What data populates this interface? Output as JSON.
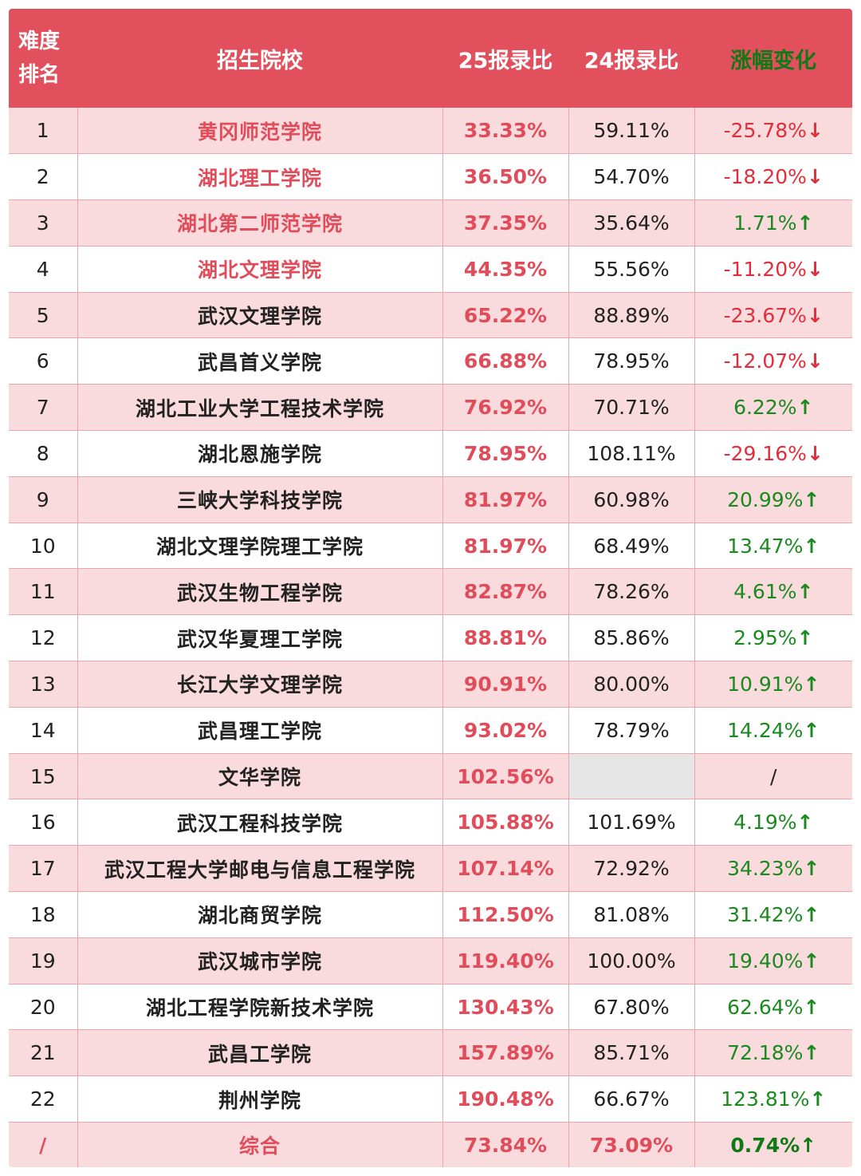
{
  "header": {
    "rank_line1": "难度",
    "rank_line2": "排名",
    "school": "招生院校",
    "ratio25": "25报录比",
    "ratio24": "24报录比",
    "change": "涨幅变化"
  },
  "rows": [
    {
      "rank": "1",
      "school": "黄冈师范学院",
      "r25": "33.33%",
      "r24": "59.11%",
      "change": "-25.78%",
      "dir": "down",
      "highlight": true
    },
    {
      "rank": "2",
      "school": "湖北理工学院",
      "r25": "36.50%",
      "r24": "54.70%",
      "change": "-18.20%",
      "dir": "down",
      "highlight": true
    },
    {
      "rank": "3",
      "school": "湖北第二师范学院",
      "r25": "37.35%",
      "r24": "35.64%",
      "change": "1.71%",
      "dir": "up",
      "highlight": true
    },
    {
      "rank": "4",
      "school": "湖北文理学院",
      "r25": "44.35%",
      "r24": "55.56%",
      "change": "-11.20%",
      "dir": "down",
      "highlight": true
    },
    {
      "rank": "5",
      "school": "武汉文理学院",
      "r25": "65.22%",
      "r24": "88.89%",
      "change": "-23.67%",
      "dir": "down",
      "highlight": false
    },
    {
      "rank": "6",
      "school": "武昌首义学院",
      "r25": "66.88%",
      "r24": "78.95%",
      "change": "-12.07%",
      "dir": "down",
      "highlight": false
    },
    {
      "rank": "7",
      "school": "湖北工业大学工程技术学院",
      "r25": "76.92%",
      "r24": "70.71%",
      "change": "6.22%",
      "dir": "up",
      "highlight": false
    },
    {
      "rank": "8",
      "school": "湖北恩施学院",
      "r25": "78.95%",
      "r24": "108.11%",
      "change": "-29.16%",
      "dir": "down",
      "highlight": false
    },
    {
      "rank": "9",
      "school": "三峡大学科技学院",
      "r25": "81.97%",
      "r24": "60.98%",
      "change": "20.99%",
      "dir": "up",
      "highlight": false
    },
    {
      "rank": "10",
      "school": "湖北文理学院理工学院",
      "r25": "81.97%",
      "r24": "68.49%",
      "change": "13.47%",
      "dir": "up",
      "highlight": false
    },
    {
      "rank": "11",
      "school": "武汉生物工程学院",
      "r25": "82.87%",
      "r24": "78.26%",
      "change": "4.61%",
      "dir": "up",
      "highlight": false
    },
    {
      "rank": "12",
      "school": "武汉华夏理工学院",
      "r25": "88.81%",
      "r24": "85.86%",
      "change": "2.95%",
      "dir": "up",
      "highlight": false
    },
    {
      "rank": "13",
      "school": "长江大学文理学院",
      "r25": "90.91%",
      "r24": "80.00%",
      "change": "10.91%",
      "dir": "up",
      "highlight": false
    },
    {
      "rank": "14",
      "school": "武昌理工学院",
      "r25": "93.02%",
      "r24": "78.79%",
      "change": "14.24%",
      "dir": "up",
      "highlight": false
    },
    {
      "rank": "15",
      "school": "文华学院",
      "r25": "102.56%",
      "r24": "",
      "change": "/",
      "dir": "none",
      "highlight": false
    },
    {
      "rank": "16",
      "school": "武汉工程科技学院",
      "r25": "105.88%",
      "r24": "101.69%",
      "change": "4.19%",
      "dir": "up",
      "highlight": false
    },
    {
      "rank": "17",
      "school": "武汉工程大学邮电与信息工程学院",
      "r25": "107.14%",
      "r24": "72.92%",
      "change": "34.23%",
      "dir": "up",
      "highlight": false
    },
    {
      "rank": "18",
      "school": "湖北商贸学院",
      "r25": "112.50%",
      "r24": "81.08%",
      "change": "31.42%",
      "dir": "up",
      "highlight": false
    },
    {
      "rank": "19",
      "school": "武汉城市学院",
      "r25": "119.40%",
      "r24": "100.00%",
      "change": "19.40%",
      "dir": "up",
      "highlight": false
    },
    {
      "rank": "20",
      "school": "湖北工程学院新技术学院",
      "r25": "130.43%",
      "r24": "67.80%",
      "change": "62.64%",
      "dir": "up",
      "highlight": false
    },
    {
      "rank": "21",
      "school": "武昌工学院",
      "r25": "157.89%",
      "r24": "85.71%",
      "change": "72.18%",
      "dir": "up",
      "highlight": false
    },
    {
      "rank": "22",
      "school": "荆州学院",
      "r25": "190.48%",
      "r24": "66.67%",
      "change": "123.81%",
      "dir": "up",
      "highlight": false
    }
  ],
  "total": {
    "rank": "/",
    "school": "综合",
    "r25": "73.84%",
    "r24": "73.09%",
    "change": "0.74%",
    "dir": "up"
  },
  "arrows": {
    "up": "↑",
    "down": "↓"
  },
  "colors": {
    "header_bg": "#e2505e",
    "row_pink": "#f9dadd",
    "up": "#1a8a1f",
    "down": "#e02e3a",
    "accent_red": "#e14c5a"
  }
}
